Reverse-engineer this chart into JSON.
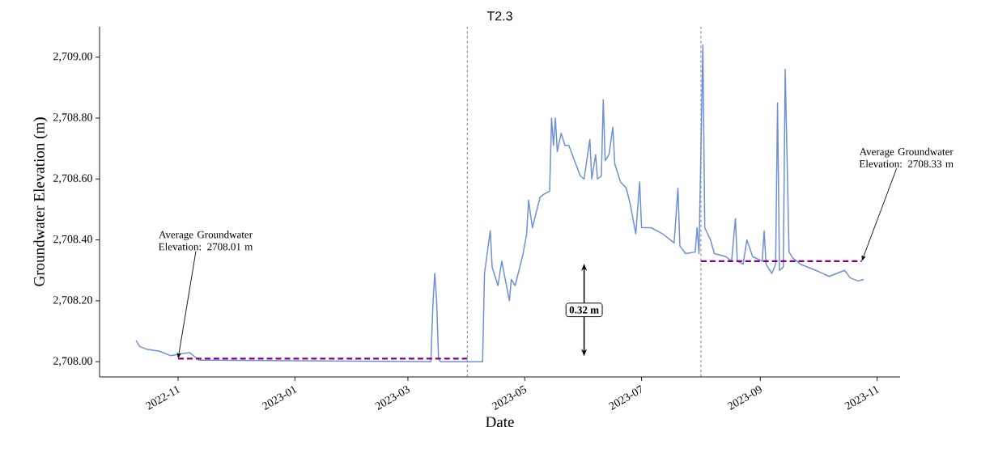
{
  "chart_data": {
    "type": "line",
    "title": "T2.3",
    "xlabel": "Date",
    "ylabel": "Groundwater Elevation (m)",
    "xlim": [
      "2022-09-21",
      "2023-11-13"
    ],
    "xticks": [
      "2022-11",
      "2023-01",
      "2023-03",
      "2023-05",
      "2023-07",
      "2023-09",
      "2023-11"
    ],
    "ylim": [
      2707.95,
      2709.1
    ],
    "yticks": [
      {
        "value": 2708.0,
        "label": "2,708.00"
      },
      {
        "value": 2708.2,
        "label": "2,708.20"
      },
      {
        "value": 2708.4,
        "label": "2,708.40"
      },
      {
        "value": 2708.6,
        "label": "2,708.60"
      },
      {
        "value": 2708.8,
        "label": "2,708.80"
      },
      {
        "value": 2709.0,
        "label": "2,709.00"
      }
    ],
    "series": [
      {
        "color": "#6e8fd6",
        "line_style": "solid",
        "x": [
          "2022-10-10",
          "2022-10-12",
          "2022-10-16",
          "2022-10-22",
          "2022-10-28",
          "2022-11-02",
          "2022-11-07",
          "2022-11-10",
          "2022-11-12",
          "2023-03-13",
          "2023-03-14",
          "2023-03-15",
          "2023-03-16",
          "2023-03-17",
          "2023-03-18",
          "2023-04-09",
          "2023-04-10",
          "2023-04-13",
          "2023-04-14",
          "2023-04-17",
          "2023-04-19",
          "2023-04-23",
          "2023-04-24",
          "2023-04-26",
          "2023-04-30",
          "2023-05-02",
          "2023-05-03",
          "2023-05-05",
          "2023-05-09",
          "2023-05-11",
          "2023-05-14",
          "2023-05-15",
          "2023-05-16",
          "2023-05-17",
          "2023-05-18",
          "2023-05-20",
          "2023-05-22",
          "2023-05-24",
          "2023-05-30",
          "2023-06-01",
          "2023-06-04",
          "2023-06-05",
          "2023-06-07",
          "2023-06-08",
          "2023-06-10",
          "2023-06-11",
          "2023-06-12",
          "2023-06-14",
          "2023-06-16",
          "2023-06-17",
          "2023-06-20",
          "2023-06-23",
          "2023-06-25",
          "2023-06-28",
          "2023-06-30",
          "2023-07-01",
          "2023-07-06",
          "2023-07-12",
          "2023-07-18",
          "2023-07-20",
          "2023-07-21",
          "2023-07-24",
          "2023-07-29",
          "2023-07-30",
          "2023-07-31",
          "2023-08-02",
          "2023-08-03",
          "2023-08-06",
          "2023-08-08",
          "2023-08-14",
          "2023-08-17",
          "2023-08-19",
          "2023-08-20",
          "2023-08-23",
          "2023-08-25",
          "2023-08-28",
          "2023-09-02",
          "2023-09-03",
          "2023-09-04",
          "2023-09-07",
          "2023-09-09",
          "2023-09-10",
          "2023-09-11",
          "2023-09-13",
          "2023-09-14",
          "2023-09-16",
          "2023-09-18",
          "2023-09-22",
          "2023-09-30",
          "2023-10-07",
          "2023-10-15",
          "2023-10-18",
          "2023-10-22",
          "2023-10-25"
        ],
        "values": [
          2708.07,
          2708.05,
          2708.04,
          2708.035,
          2708.02,
          2708.025,
          2708.03,
          2708.015,
          2708.005,
          2708.0,
          2708.18,
          2708.29,
          2708.2,
          2708.01,
          2708.0,
          2708.0,
          2708.29,
          2708.43,
          2708.31,
          2708.25,
          2708.33,
          2708.2,
          2708.27,
          2708.25,
          2708.35,
          2708.42,
          2708.53,
          2708.44,
          2708.54,
          2708.55,
          2708.56,
          2708.8,
          2708.71,
          2708.8,
          2708.69,
          2708.75,
          2708.71,
          2708.71,
          2708.61,
          2708.6,
          2708.73,
          2708.6,
          2708.68,
          2708.6,
          2708.61,
          2708.86,
          2708.66,
          2708.68,
          2708.77,
          2708.65,
          2708.59,
          2708.57,
          2708.52,
          2708.42,
          2708.59,
          2708.44,
          2708.44,
          2708.42,
          2708.39,
          2708.57,
          2708.38,
          2708.355,
          2708.36,
          2708.44,
          2708.355,
          2709.04,
          2708.44,
          2708.4,
          2708.355,
          2708.345,
          2708.33,
          2708.47,
          2708.33,
          2708.32,
          2708.4,
          2708.345,
          2708.33,
          2708.43,
          2708.32,
          2708.29,
          2708.32,
          2708.85,
          2708.3,
          2708.31,
          2708.96,
          2708.36,
          2708.34,
          2708.32,
          2708.3,
          2708.28,
          2708.3,
          2708.275,
          2708.265,
          2708.27
        ]
      },
      {
        "color": "#800080",
        "line_style": "dashed",
        "x": [
          "2022-11-01",
          "2023-04-01"
        ],
        "values": [
          2708.01,
          2708.01
        ]
      },
      {
        "color": "#800080",
        "line_style": "dashed",
        "x": [
          "2023-08-01",
          "2023-10-24"
        ],
        "values": [
          2708.33,
          2708.33
        ]
      }
    ],
    "ref_lines": [
      {
        "axis": "x",
        "value": "2023-04-01",
        "color": "#555555",
        "line_style": "dashed"
      },
      {
        "axis": "x",
        "value": "2023-08-01",
        "color": "#555555",
        "line_style": "dashed"
      }
    ],
    "annotations": [
      {
        "text": "Average Groundwater Elevation: 2708.01 m",
        "x": "2022-11-01",
        "y": 2708.01
      },
      {
        "text": "Average Groundwater Elevation: 2708.33 m",
        "x": "2023-10-24",
        "y": 2708.33
      },
      "0.32 m"
    ]
  }
}
